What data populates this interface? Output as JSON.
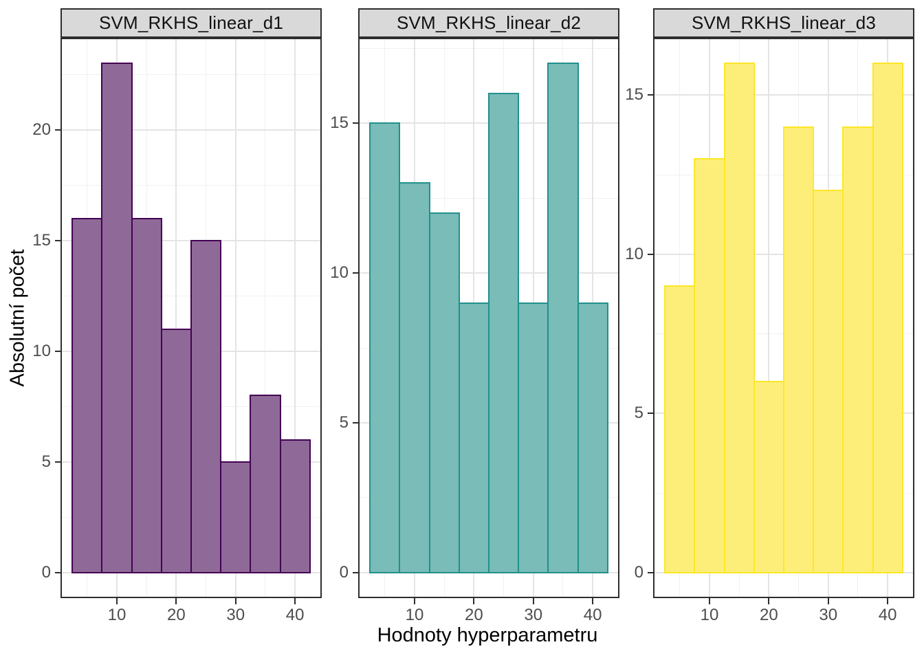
{
  "figure": {
    "xlabel": "Hodnoty hyperparametru",
    "ylabel": "Absolutní počet"
  },
  "colors": {
    "strip_background": "#d9d9d9",
    "panel_border": "#2e2e2e",
    "grid_major": "#e4e4e4",
    "grid_minor": "#f0f0f0",
    "tick_label": "#4d4d4d",
    "axis_title": "#000000",
    "d1_fill": "#8f6a98",
    "d1_stroke": "#440154",
    "d2_fill": "#79bcb8",
    "d2_stroke": "#21908c",
    "d3_fill": "#fdee7a",
    "d3_stroke": "#fde725"
  },
  "chart_data": [
    {
      "type": "bar",
      "subtype": "histogram",
      "title": "SVM_RKHS_linear_d1",
      "bin_start": 2.5,
      "bin_width": 5,
      "bin_centers": [
        5,
        10,
        15,
        20,
        25,
        30,
        35,
        40
      ],
      "counts": [
        16,
        23,
        16,
        11,
        15,
        5,
        8,
        6
      ],
      "x_ticks": [
        10,
        20,
        30,
        40
      ],
      "x_minor": [
        5,
        15,
        25,
        35
      ],
      "y_ticks": [
        0,
        5,
        10,
        15,
        20
      ],
      "y_minor": [
        2.5,
        7.5,
        12.5,
        17.5,
        22.5
      ],
      "xlim": [
        0.5,
        44.5
      ],
      "ylim": [
        -1.15,
        24.15
      ],
      "fill": "#8f6a98",
      "stroke": "#440154"
    },
    {
      "type": "bar",
      "subtype": "histogram",
      "title": "SVM_RKHS_linear_d2",
      "bin_start": 2.5,
      "bin_width": 5,
      "bin_centers": [
        5,
        10,
        15,
        20,
        25,
        30,
        35,
        40
      ],
      "counts": [
        15,
        13,
        12,
        9,
        16,
        9,
        17,
        9
      ],
      "x_ticks": [
        10,
        20,
        30,
        40
      ],
      "x_minor": [
        5,
        15,
        25,
        35
      ],
      "y_ticks": [
        0,
        5,
        10,
        15
      ],
      "y_minor": [
        2.5,
        7.5,
        12.5,
        17.5
      ],
      "xlim": [
        0.5,
        44.5
      ],
      "ylim": [
        -0.85,
        17.85
      ],
      "fill": "#79bcb8",
      "stroke": "#21908c"
    },
    {
      "type": "bar",
      "subtype": "histogram",
      "title": "SVM_RKHS_linear_d3",
      "bin_start": 2.5,
      "bin_width": 5,
      "bin_centers": [
        5,
        10,
        15,
        20,
        25,
        30,
        35,
        40
      ],
      "counts": [
        9,
        13,
        16,
        6,
        14,
        12,
        14,
        16
      ],
      "x_ticks": [
        10,
        20,
        30,
        40
      ],
      "x_minor": [
        5,
        15,
        25,
        35
      ],
      "y_ticks": [
        0,
        5,
        10,
        15
      ],
      "y_minor": [
        2.5,
        7.5,
        12.5
      ],
      "xlim": [
        0.5,
        44.5
      ],
      "ylim": [
        -0.8,
        16.8
      ],
      "fill": "#fdee7a",
      "stroke": "#fde725"
    }
  ]
}
